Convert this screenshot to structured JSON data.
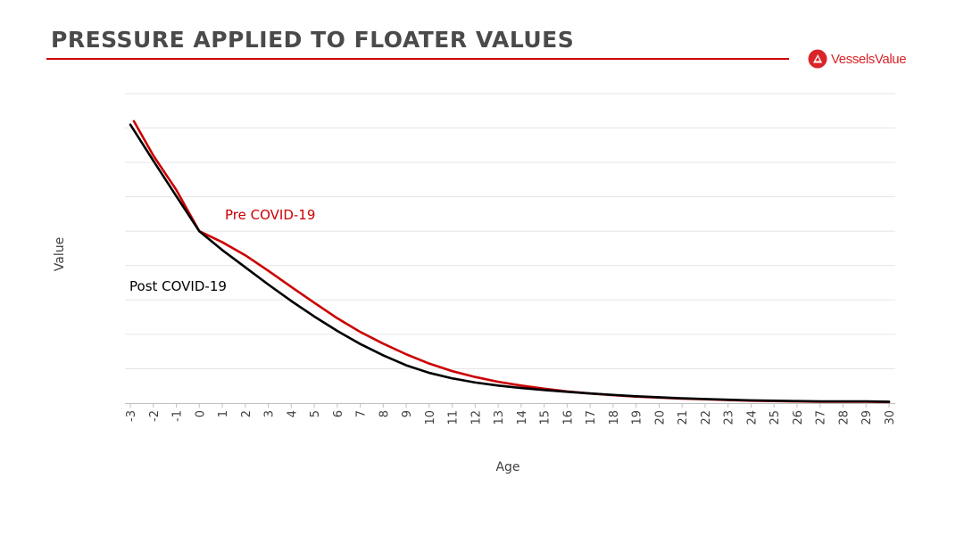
{
  "header": {
    "title": "PRESSURE APPLIED TO FLOATER VALUES",
    "rule_color": "#cc0000"
  },
  "brand": {
    "name": "VesselsValue",
    "color": "#d9252a",
    "icon": "vesselsvalue-logo-icon"
  },
  "chart_data": {
    "type": "line",
    "title": "",
    "xlabel": "Age",
    "ylabel": "Value",
    "x": [
      -3,
      -2,
      -1,
      0,
      1,
      2,
      3,
      4,
      5,
      6,
      7,
      8,
      9,
      10,
      11,
      12,
      13,
      14,
      15,
      16,
      17,
      18,
      19,
      20,
      21,
      22,
      23,
      24,
      25,
      26,
      27,
      28,
      29,
      30
    ],
    "xlim": [
      -3,
      30
    ],
    "ylim": [
      0,
      9
    ],
    "y_tick_labels_shown": false,
    "grid": true,
    "series": [
      {
        "name": "Pre COVID-19",
        "color": "#cc0000",
        "values": [
          8.2,
          7.2,
          6.2,
          5.0,
          4.68,
          4.3,
          3.85,
          3.38,
          2.92,
          2.47,
          2.07,
          1.73,
          1.42,
          1.15,
          0.93,
          0.76,
          0.62,
          0.51,
          0.42,
          0.34,
          0.28,
          0.23,
          0.19,
          0.16,
          0.13,
          0.11,
          0.09,
          0.07,
          0.06,
          0.05,
          0.04,
          0.04,
          0.04,
          0.03
        ]
      },
      {
        "name": "Post COVID-19",
        "color": "#000000",
        "values": [
          8.1,
          7.05,
          6.02,
          5.0,
          4.45,
          3.95,
          3.45,
          2.97,
          2.52,
          2.1,
          1.72,
          1.39,
          1.1,
          0.88,
          0.72,
          0.6,
          0.51,
          0.44,
          0.38,
          0.33,
          0.28,
          0.24,
          0.2,
          0.17,
          0.14,
          0.12,
          0.1,
          0.08,
          0.07,
          0.06,
          0.05,
          0.05,
          0.05,
          0.04
        ]
      }
    ],
    "annotations": [
      {
        "text": "Pre COVID-19",
        "series": 0,
        "color": "#cc0000"
      },
      {
        "text": "Post COVID-19",
        "series": 1,
        "color": "#000000"
      }
    ]
  }
}
